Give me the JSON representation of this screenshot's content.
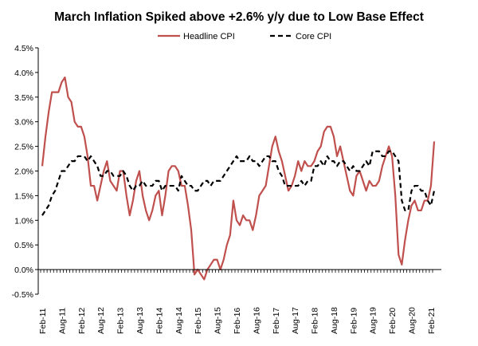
{
  "chart_data": {
    "type": "line",
    "title": "March Inflation Spiked above +2.6% y/y due to Low Base Effect",
    "xlabel": "",
    "ylabel": "",
    "ylim": [
      -0.5,
      4.5
    ],
    "yticks": [
      "-0.5%",
      "0.0%",
      "0.5%",
      "1.0%",
      "1.5%",
      "2.0%",
      "2.5%",
      "3.0%",
      "3.5%",
      "4.0%",
      "4.5%"
    ],
    "ytick_values": [
      -0.5,
      0,
      0.5,
      1,
      1.5,
      2,
      2.5,
      3,
      3.5,
      4,
      4.5
    ],
    "x_start": "Feb-11",
    "x_end": "Mar-21",
    "xtick_labels": [
      "Feb-11",
      "Aug-11",
      "Feb-12",
      "Aug-12",
      "Feb-13",
      "Aug-13",
      "Feb-14",
      "Aug-14",
      "Feb-15",
      "Aug-15",
      "Feb-16",
      "Aug-16",
      "Feb-17",
      "Aug-17",
      "Feb-18",
      "Aug-18",
      "Feb-19",
      "Aug-19",
      "Feb-20",
      "Aug-20",
      "Feb-21"
    ],
    "legend_position": "top-center",
    "series": [
      {
        "name": "Headline CPI",
        "color": "#c0504d",
        "style": "solid",
        "values": [
          2.1,
          2.7,
          3.2,
          3.6,
          3.6,
          3.6,
          3.8,
          3.9,
          3.5,
          3.4,
          3.0,
          2.9,
          2.9,
          2.7,
          2.3,
          1.7,
          1.7,
          1.4,
          1.7,
          2.0,
          2.2,
          1.8,
          1.7,
          1.6,
          2.0,
          2.0,
          1.5,
          1.1,
          1.4,
          1.8,
          2.0,
          1.5,
          1.2,
          1.0,
          1.2,
          1.5,
          1.6,
          1.1,
          1.5,
          2.0,
          2.1,
          2.1,
          2.0,
          1.7,
          1.7,
          1.3,
          0.8,
          -0.1,
          0.0,
          -0.1,
          -0.2,
          0.0,
          0.1,
          0.2,
          0.2,
          0.0,
          0.2,
          0.5,
          0.7,
          1.4,
          1.0,
          0.9,
          1.1,
          1.0,
          1.0,
          0.8,
          1.1,
          1.5,
          1.6,
          1.7,
          2.1,
          2.5,
          2.7,
          2.4,
          2.2,
          1.9,
          1.6,
          1.7,
          1.9,
          2.2,
          2.0,
          2.2,
          2.1,
          2.1,
          2.2,
          2.4,
          2.5,
          2.8,
          2.9,
          2.9,
          2.7,
          2.3,
          2.5,
          2.2,
          1.9,
          1.6,
          1.5,
          1.9,
          2.0,
          1.8,
          1.6,
          1.8,
          1.7,
          1.7,
          1.8,
          2.1,
          2.3,
          2.5,
          2.3,
          1.5,
          0.3,
          0.1,
          0.6,
          1.0,
          1.3,
          1.4,
          1.2,
          1.2,
          1.4,
          1.4,
          1.7,
          2.6
        ]
      },
      {
        "name": "Core CPI",
        "color": "#000000",
        "style": "dashed",
        "values": [
          1.1,
          1.2,
          1.3,
          1.5,
          1.6,
          1.8,
          2.0,
          2.0,
          2.1,
          2.2,
          2.2,
          2.3,
          2.3,
          2.3,
          2.2,
          2.3,
          2.2,
          2.1,
          1.9,
          1.9,
          2.0,
          2.0,
          1.9,
          1.9,
          1.9,
          2.0,
          1.9,
          1.7,
          1.6,
          1.7,
          1.7,
          1.8,
          1.7,
          1.7,
          1.7,
          1.8,
          1.8,
          1.6,
          1.7,
          1.7,
          1.7,
          1.7,
          1.6,
          1.9,
          1.8,
          1.7,
          1.7,
          1.6,
          1.6,
          1.7,
          1.8,
          1.8,
          1.7,
          1.8,
          1.8,
          1.8,
          1.9,
          2.0,
          2.1,
          2.2,
          2.3,
          2.2,
          2.2,
          2.2,
          2.3,
          2.2,
          2.2,
          2.1,
          2.2,
          2.3,
          2.3,
          2.2,
          2.2,
          2.0,
          1.9,
          1.7,
          1.7,
          1.7,
          1.7,
          1.7,
          1.8,
          1.7,
          1.8,
          1.8,
          2.1,
          2.1,
          2.2,
          2.1,
          2.3,
          2.2,
          2.2,
          2.1,
          2.2,
          2.2,
          2.1,
          2.0,
          2.1,
          2.0,
          2.0,
          2.1,
          2.2,
          2.1,
          2.4,
          2.4,
          2.4,
          2.3,
          2.3,
          2.4,
          2.4,
          2.3,
          2.2,
          1.4,
          1.2,
          1.2,
          1.6,
          1.7,
          1.7,
          1.6,
          1.6,
          1.4,
          1.3,
          1.6
        ]
      }
    ]
  }
}
